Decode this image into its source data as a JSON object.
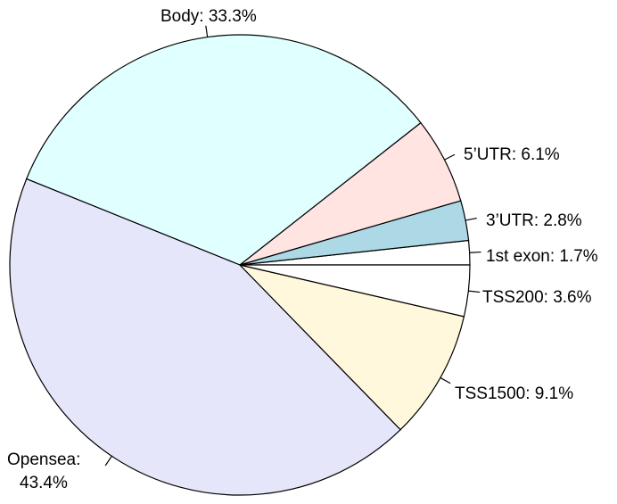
{
  "chart_data": {
    "type": "pie",
    "labels": [
      "1st exon",
      "3'UTR",
      "5'UTR",
      "Body",
      "Opensea",
      "TSS1500",
      "TSS200"
    ],
    "values": [
      1.7,
      2.8,
      6.1,
      33.3,
      43.4,
      9.1,
      3.6
    ],
    "colors": [
      "#ffffff",
      "#add8e6",
      "#ffe4e1",
      "#e0ffff",
      "#e6e6fa",
      "#fff8dc",
      "#ffffff"
    ],
    "slice_labels": [
      "1st exon: 1.7%",
      "3’UTR: 2.8%",
      "5’UTR: 6.1%",
      "Body: 33.3%",
      "Opensea:",
      "TSS1500: 9.1%",
      "TSS200: 3.6%"
    ],
    "opensea_value_line": "43.4%",
    "start": "3 o'clock",
    "direction": "counterclockwise"
  }
}
